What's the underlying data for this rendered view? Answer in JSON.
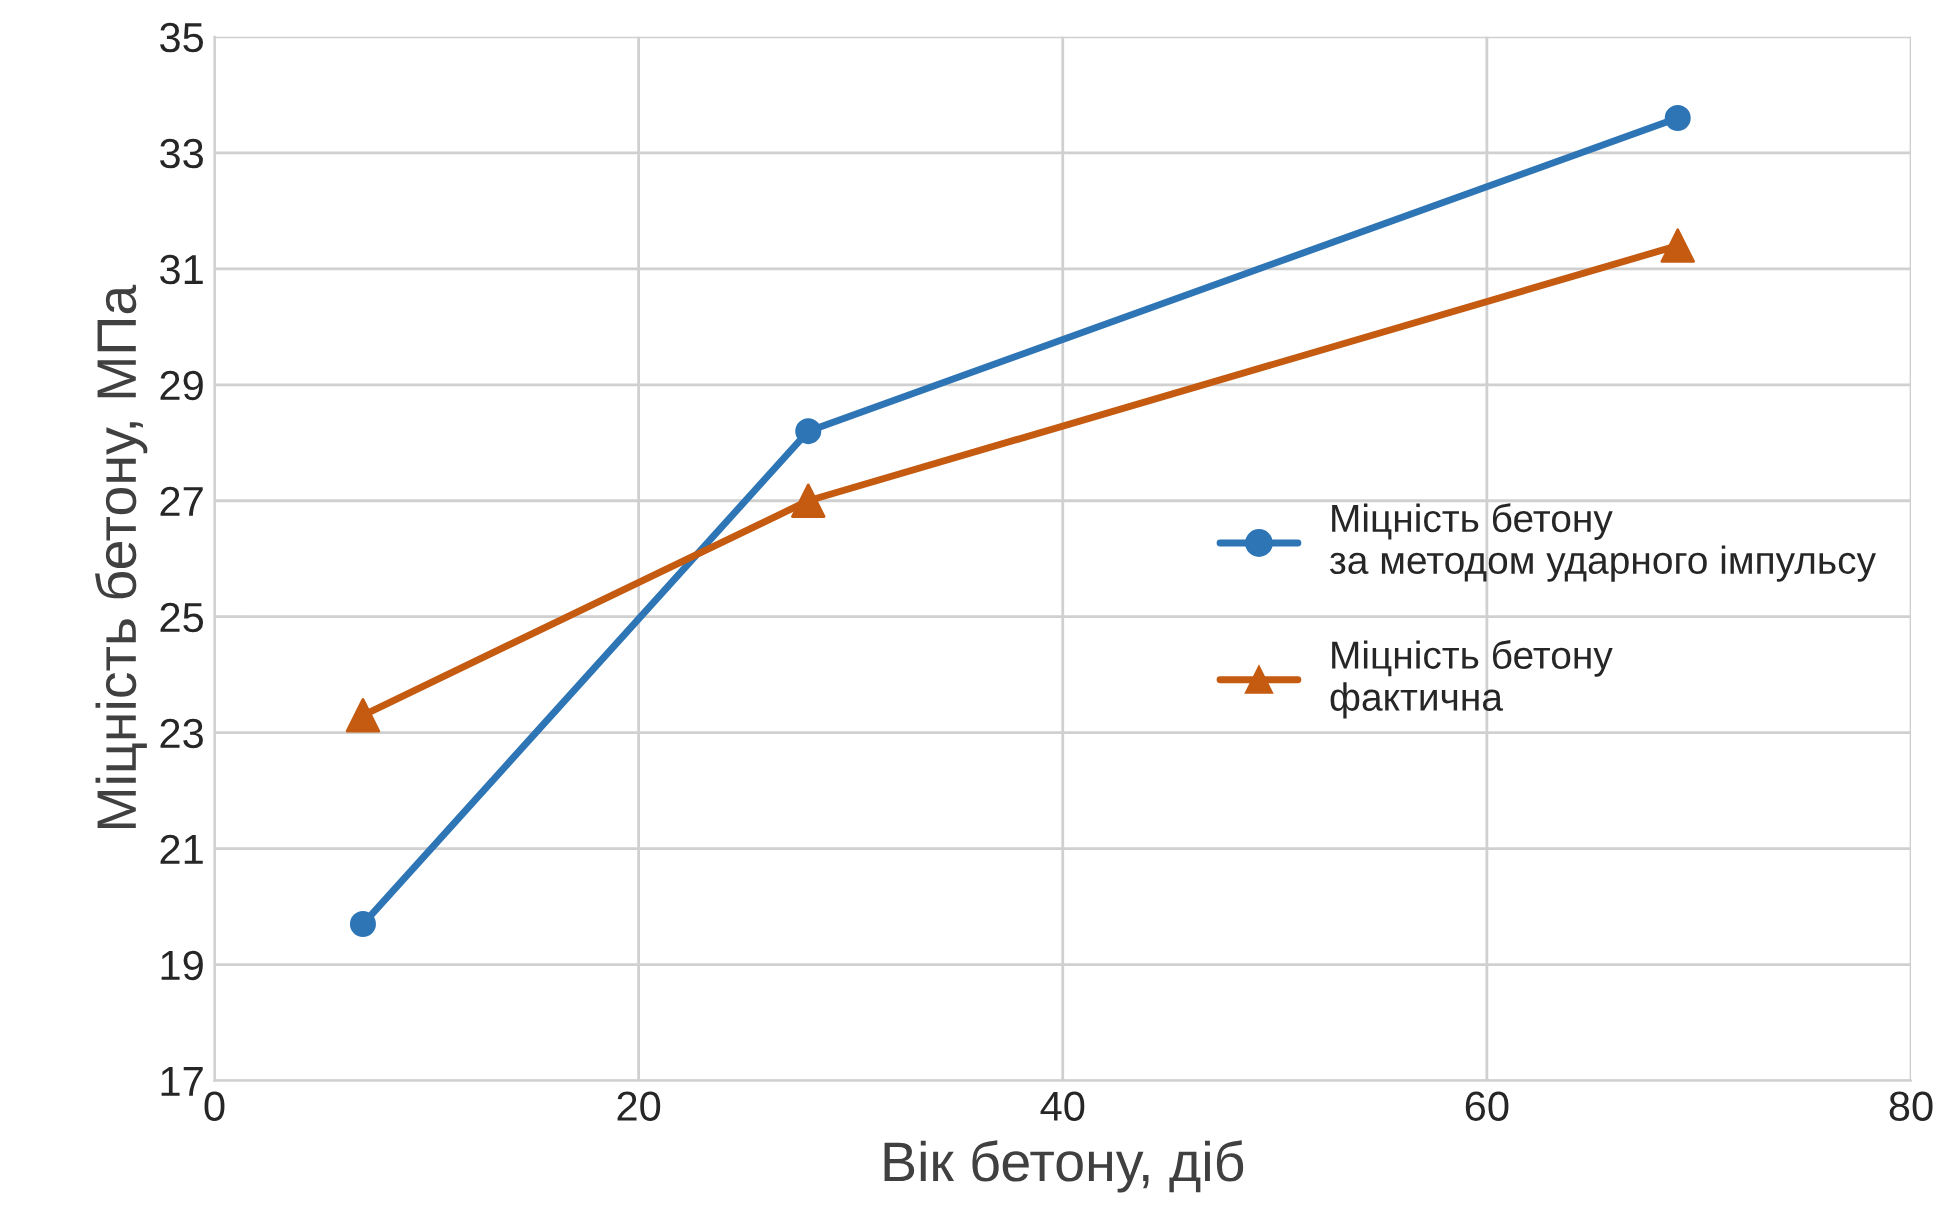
{
  "chart_data": {
    "type": "line",
    "xlabel": "Вік бетону, діб",
    "ylabel": "Міцність бетону, МПа",
    "x": [
      7,
      28,
      69
    ],
    "series": [
      {
        "name": "Міцність бетону\nза методом ударного імпульсу",
        "color": "#2e75b6",
        "marker": "circle",
        "values": [
          19.7,
          28.2,
          33.6
        ]
      },
      {
        "name": "Міцність бетону\nфактична",
        "color": "#c55a11",
        "marker": "triangle",
        "values": [
          23.3,
          27.0,
          31.4
        ]
      }
    ],
    "xlim": [
      0,
      80
    ],
    "xticks": [
      0,
      20,
      40,
      60,
      80
    ],
    "ylim": [
      17,
      35
    ],
    "yticks": [
      17,
      19,
      21,
      23,
      25,
      27,
      29,
      31,
      33,
      35
    ],
    "grid": true,
    "legend": "right",
    "line_style": "solid"
  }
}
